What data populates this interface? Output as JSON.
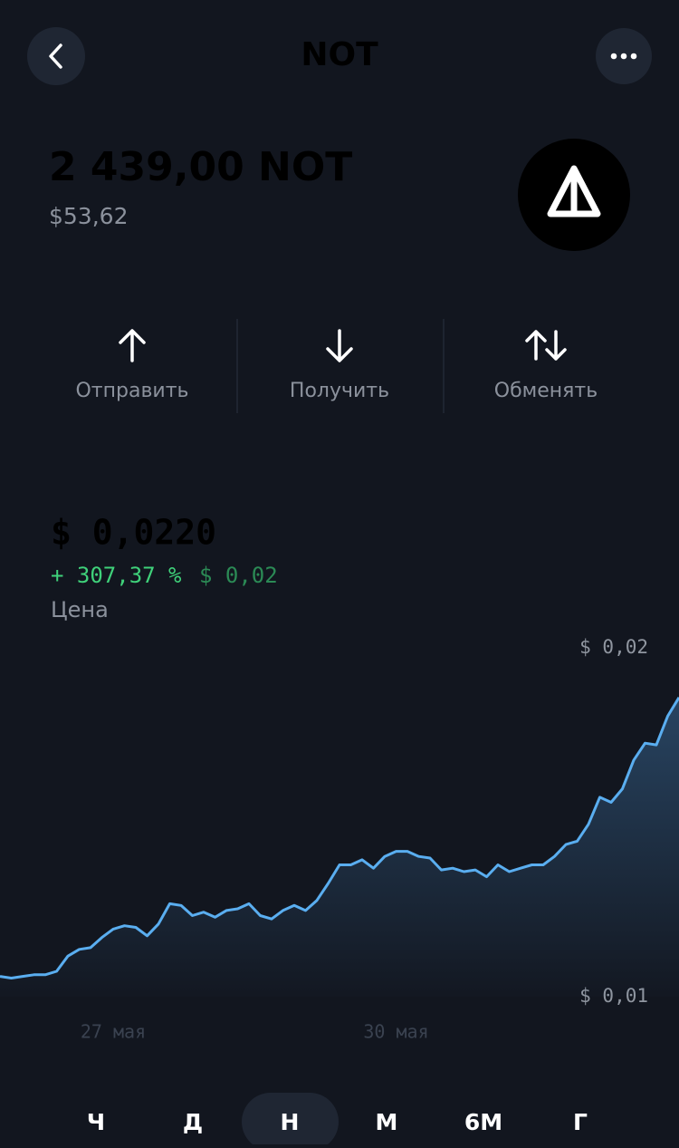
{
  "header": {
    "title": "NOT"
  },
  "balance": {
    "amount": "2 439,00 NOT",
    "fiat": "$53,62"
  },
  "actions": [
    "Отправить",
    "Получить",
    "Обменять"
  ],
  "price": {
    "value": "$ 0,0220",
    "change_percent": "+ 307,37 %",
    "change_fiat": "$ 0,02",
    "label": "Цена"
  },
  "chart_data": {
    "type": "line",
    "categories": [
      null,
      null,
      null,
      null,
      null,
      null,
      null,
      null,
      null,
      null,
      "27 мая",
      null,
      null,
      null,
      null,
      null,
      null,
      null,
      null,
      null,
      null,
      null,
      null,
      null,
      null,
      null,
      null,
      null,
      null,
      null,
      null,
      null,
      null,
      null,
      null,
      "30 мая",
      null,
      null,
      null,
      null,
      null,
      null,
      null,
      null,
      null,
      null,
      null,
      null,
      null,
      null,
      null,
      null,
      null,
      null,
      null,
      null,
      null,
      null,
      null,
      null,
      null
    ],
    "series": [
      {
        "color": "#5aaef0",
        "values": [
          0.0055,
          0.0054,
          0.0055,
          0.0056,
          0.0056,
          0.0058,
          0.0067,
          0.0071,
          0.0072,
          0.0078,
          0.0083,
          0.0085,
          0.0084,
          0.0079,
          0.0086,
          0.0098,
          0.0097,
          0.0091,
          0.0093,
          0.009,
          0.0094,
          0.0095,
          0.0098,
          0.0091,
          0.0089,
          0.0094,
          0.0097,
          0.0094,
          0.01,
          0.011,
          0.0121,
          0.0121,
          0.0124,
          0.0119,
          0.0126,
          0.0129,
          0.0129,
          0.0126,
          0.0125,
          0.0118,
          0.0119,
          0.0117,
          0.0118,
          0.0114,
          0.0121,
          0.0117,
          0.0119,
          0.0121,
          0.0121,
          0.0126,
          0.0133,
          0.0135,
          0.0145,
          0.0161,
          0.0158,
          0.0166,
          0.0183,
          0.0193,
          0.0192,
          0.0209,
          0.022
        ]
      }
    ],
    "ylim": [
      0.0043,
      0.0236
    ],
    "max_label": "$ 0,02",
    "min_label": "$ 0,01"
  },
  "periods": {
    "items": [
      "Ч",
      "Д",
      "Н",
      "М",
      "6М",
      "Г"
    ],
    "selected": 2
  }
}
